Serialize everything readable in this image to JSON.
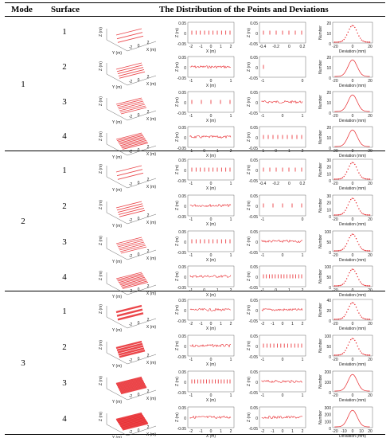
{
  "header": {
    "mode": "Mode",
    "surface": "Surface",
    "title": "The Distribution of the Points and Deviations"
  },
  "modes": [
    {
      "label": "1",
      "surfaces": [
        "1",
        "2",
        "3",
        "4"
      ]
    },
    {
      "label": "2",
      "surfaces": [
        "1",
        "2",
        "3",
        "4"
      ]
    },
    {
      "label": "3",
      "surfaces": [
        "1",
        "2",
        "3",
        "4"
      ]
    }
  ],
  "axis_labels": {
    "z": "Z (m)",
    "x": "X (m)",
    "y": "Y (m)",
    "number": "Number",
    "deviation": "Deviation (mm)"
  },
  "colors": {
    "points": "#e8262b",
    "axis": "#444444",
    "rule": "#000000"
  },
  "chart_data": [
    {
      "type": "scatter",
      "panel": "3d-point-distribution",
      "zlabel": "Z (m)",
      "xlabel": "X (m)",
      "ylabel": "Y (m)",
      "x_ticks": [
        "-2",
        "0",
        "2"
      ],
      "y_ticks": [
        "-2",
        "0",
        "2"
      ],
      "z_ticks": [
        "-2",
        "0",
        "2"
      ]
    },
    {
      "type": "scatter",
      "panel": "xz-projection",
      "ylabel": "Z (m)",
      "xlabel": "X (m)",
      "ylim": [
        -0.05,
        0.05
      ],
      "y_ticks": [
        "0.05",
        "0",
        "-0.05"
      ]
    },
    {
      "type": "scatter",
      "panel": "yz-projection",
      "ylabel": "Z (m)",
      "ylim": [
        -0.05,
        0.05
      ],
      "y_ticks": [
        "0.05",
        "0",
        "-0.05"
      ]
    },
    {
      "type": "line",
      "panel": "deviation-histogram",
      "ylabel": "Number",
      "xlabel": "Deviation (mm)",
      "xlim": [
        -20,
        20
      ],
      "x_ticks": [
        "-20",
        "0",
        "20"
      ]
    }
  ],
  "rows": [
    {
      "xz_ticks": [
        "-2",
        "-1",
        "0",
        "1",
        "2"
      ],
      "yz_ticks": [
        "-0.4",
        "-0.2",
        "0",
        "0.2"
      ],
      "hist_y": [
        "20",
        "10",
        "0"
      ],
      "xz_xlabel": true,
      "yz_xlabel": false,
      "hist_xlabel": true,
      "xz_lines": 10,
      "yz_lines": 7,
      "hist": "dots"
    },
    {
      "xz_ticks": [
        "-1",
        "0",
        "1"
      ],
      "yz_ticks": [
        "-1",
        "0"
      ],
      "hist_y": [
        "20",
        "10",
        "0"
      ],
      "xz_xlabel": true,
      "yz_xlabel": false,
      "hist_xlabel": true,
      "xz_lines": 0,
      "yz_lines": 1,
      "hist": "line"
    },
    {
      "xz_ticks": [
        "-1",
        "0",
        "1"
      ],
      "yz_ticks": [
        "-1",
        "0",
        "1"
      ],
      "hist_y": [
        "20",
        "10",
        "0"
      ],
      "xz_xlabel": true,
      "yz_xlabel": false,
      "hist_xlabel": true,
      "xz_lines": 5,
      "yz_lines": 0,
      "hist": "line"
    },
    {
      "xz_ticks": [
        "-1",
        "0",
        "1",
        "2"
      ],
      "yz_ticks": [
        "-1",
        "0",
        "1",
        "2"
      ],
      "hist_y": [
        "20",
        "10",
        "0"
      ],
      "xz_xlabel": true,
      "yz_xlabel": false,
      "hist_xlabel": true,
      "xz_lines": 0,
      "yz_lines": 9,
      "hist": "line"
    },
    {
      "xz_ticks": [
        "-1",
        "0",
        "1"
      ],
      "yz_ticks": [
        "-0.4",
        "-0.2",
        "0",
        "0.2"
      ],
      "hist_y": [
        "30",
        "20",
        "10",
        "0"
      ],
      "xz_xlabel": true,
      "yz_xlabel": false,
      "hist_xlabel": true,
      "xz_lines": 10,
      "yz_lines": 7,
      "hist": "dots"
    },
    {
      "xz_ticks": [
        "-1",
        "0",
        "1"
      ],
      "yz_ticks": [
        "-1",
        "0"
      ],
      "hist_y": [
        "30",
        "20",
        "10",
        "0"
      ],
      "xz_xlabel": true,
      "yz_xlabel": false,
      "hist_xlabel": true,
      "xz_lines": 0,
      "yz_lines": 5,
      "hist": "dots"
    },
    {
      "xz_ticks": [
        "-1",
        "0",
        "1"
      ],
      "yz_ticks": [
        "-1",
        "0",
        "1"
      ],
      "hist_y": [
        "100",
        "50",
        "0"
      ],
      "xz_xlabel": true,
      "yz_xlabel": false,
      "hist_xlabel": true,
      "xz_lines": 10,
      "yz_lines": 0,
      "hist": "dots"
    },
    {
      "xz_ticks": [
        "-1",
        "0",
        "1",
        "2"
      ],
      "yz_ticks": [
        "-1",
        "0",
        "1",
        "2"
      ],
      "hist_y": [
        "100",
        "50",
        "0"
      ],
      "xz_xlabel": true,
      "yz_xlabel": false,
      "hist_xlabel": true,
      "xz_lines": 0,
      "yz_lines": 14,
      "hist": "dots"
    },
    {
      "xz_ticks": [
        "-2",
        "-1",
        "0",
        "1",
        "2"
      ],
      "yz_ticks": [
        "-2",
        "-1",
        "0",
        "1",
        "2"
      ],
      "hist_y": [
        "40",
        "20",
        "0"
      ],
      "xz_xlabel": true,
      "yz_xlabel": false,
      "hist_xlabel": true,
      "xz_lines": 0,
      "yz_lines": 0,
      "hist": "dots"
    },
    {
      "xz_ticks": [
        "-1",
        "0",
        "1"
      ],
      "yz_ticks": [
        "-1",
        "0",
        "1"
      ],
      "hist_y": [
        "100",
        "50",
        "0"
      ],
      "xz_xlabel": true,
      "yz_xlabel": false,
      "hist_xlabel": true,
      "xz_lines": 0,
      "yz_lines": 12,
      "hist": "dots"
    },
    {
      "xz_ticks": [
        "-1",
        "0",
        "1"
      ],
      "yz_ticks": [
        "-1",
        "0",
        "1"
      ],
      "hist_y": [
        "200",
        "100",
        "0"
      ],
      "xz_xlabel": true,
      "yz_xlabel": false,
      "hist_xlabel": true,
      "xz_lines": 14,
      "yz_lines": 0,
      "hist": "line"
    },
    {
      "xz_ticks": [
        "-2",
        "-1",
        "0",
        "1",
        "2"
      ],
      "yz_ticks": [
        "-2",
        "-1",
        "0",
        "1",
        "2"
      ],
      "hist_y": [
        "300",
        "200",
        "100",
        "0"
      ],
      "xz_xlabel": true,
      "yz_xlabel": false,
      "hist_xlabel": true,
      "xz_lines": 0,
      "yz_lines": 0,
      "hist": "line",
      "hist_ticks": [
        "-20",
        "-10",
        "0",
        "10",
        "20"
      ]
    }
  ]
}
